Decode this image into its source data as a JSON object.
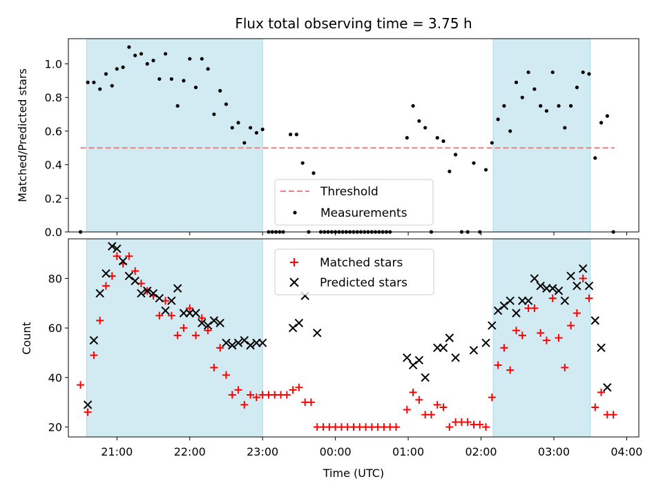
{
  "chart_data": [
    {
      "type": "scatter",
      "title": "Flux total observing time = 3.75 h",
      "xlabel": "",
      "ylabel": "Matched/Predicted stars",
      "xlim": [
        "20:20",
        "04:10"
      ],
      "ylim": [
        0,
        1.15
      ],
      "yticks": [
        "0.0",
        "0.2",
        "0.4",
        "0.6",
        "0.8",
        "1.0"
      ],
      "grid": false,
      "legend_position": "lower-center",
      "colors": {
        "threshold": "#f08080",
        "measurements": "#000000",
        "band": "#add8e6"
      },
      "shaded_spans": [
        [
          "20:35",
          "23:00"
        ],
        [
          "02:10",
          "03:30"
        ]
      ],
      "threshold": {
        "name": "Threshold",
        "value": 0.5,
        "x_range": [
          "20:30",
          "03:50"
        ]
      },
      "series": [
        {
          "name": "Measurements",
          "points": [
            [
              "20:30",
              0.0
            ],
            [
              "20:36",
              0.89
            ],
            [
              "20:41",
              0.89
            ],
            [
              "20:46",
              0.85
            ],
            [
              "20:51",
              0.94
            ],
            [
              "20:56",
              0.87
            ],
            [
              "21:00",
              0.97
            ],
            [
              "21:05",
              0.98
            ],
            [
              "21:10",
              1.1
            ],
            [
              "21:15",
              1.05
            ],
            [
              "21:20",
              1.06
            ],
            [
              "21:25",
              1.0
            ],
            [
              "21:30",
              1.02
            ],
            [
              "21:35",
              0.91
            ],
            [
              "21:40",
              1.06
            ],
            [
              "21:45",
              0.91
            ],
            [
              "21:50",
              0.75
            ],
            [
              "21:55",
              0.9
            ],
            [
              "22:00",
              1.03
            ],
            [
              "22:05",
              0.86
            ],
            [
              "22:10",
              1.03
            ],
            [
              "22:15",
              0.97
            ],
            [
              "22:20",
              0.7
            ],
            [
              "22:25",
              0.84
            ],
            [
              "22:30",
              0.76
            ],
            [
              "22:35",
              0.62
            ],
            [
              "22:40",
              0.65
            ],
            [
              "22:45",
              0.53
            ],
            [
              "22:50",
              0.62
            ],
            [
              "22:55",
              0.59
            ],
            [
              "23:00",
              0.61
            ],
            [
              "23:05",
              0.0
            ],
            [
              "23:08",
              0.0
            ],
            [
              "23:11",
              0.0
            ],
            [
              "23:14",
              0.0
            ],
            [
              "23:17",
              0.0
            ],
            [
              "23:23",
              0.58
            ],
            [
              "23:28",
              0.58
            ],
            [
              "23:33",
              0.41
            ],
            [
              "23:38",
              0.0
            ],
            [
              "23:42",
              0.35
            ],
            [
              "23:48",
              0.0
            ],
            [
              "23:51",
              0.0
            ],
            [
              "23:54",
              0.0
            ],
            [
              "23:57",
              0.0
            ],
            [
              "00:00",
              0.0
            ],
            [
              "00:03",
              0.0
            ],
            [
              "00:06",
              0.0
            ],
            [
              "00:09",
              0.0
            ],
            [
              "00:12",
              0.0
            ],
            [
              "00:15",
              0.0
            ],
            [
              "00:18",
              0.0
            ],
            [
              "00:21",
              0.0
            ],
            [
              "00:24",
              0.0
            ],
            [
              "00:27",
              0.0
            ],
            [
              "00:30",
              0.0
            ],
            [
              "00:33",
              0.0
            ],
            [
              "00:36",
              0.0
            ],
            [
              "00:39",
              0.0
            ],
            [
              "00:42",
              0.0
            ],
            [
              "00:45",
              0.0
            ],
            [
              "00:59",
              0.56
            ],
            [
              "01:04",
              0.75
            ],
            [
              "01:09",
              0.66
            ],
            [
              "01:14",
              0.62
            ],
            [
              "01:19",
              0.0
            ],
            [
              "01:24",
              0.56
            ],
            [
              "01:29",
              0.54
            ],
            [
              "01:34",
              0.36
            ],
            [
              "01:39",
              0.46
            ],
            [
              "01:44",
              0.0
            ],
            [
              "01:49",
              0.0
            ],
            [
              "01:54",
              0.41
            ],
            [
              "01:59",
              0.0
            ],
            [
              "02:04",
              0.37
            ],
            [
              "02:09",
              0.53
            ],
            [
              "02:14",
              0.67
            ],
            [
              "02:19",
              0.75
            ],
            [
              "02:24",
              0.6
            ],
            [
              "02:29",
              0.89
            ],
            [
              "02:34",
              0.8
            ],
            [
              "02:39",
              0.95
            ],
            [
              "02:44",
              0.85
            ],
            [
              "02:49",
              0.75
            ],
            [
              "02:54",
              0.72
            ],
            [
              "02:59",
              0.95
            ],
            [
              "03:04",
              0.75
            ],
            [
              "03:09",
              0.62
            ],
            [
              "03:14",
              0.75
            ],
            [
              "03:19",
              0.86
            ],
            [
              "03:24",
              0.95
            ],
            [
              "03:29",
              0.94
            ],
            [
              "03:34",
              0.44
            ],
            [
              "03:39",
              0.65
            ],
            [
              "03:44",
              0.69
            ],
            [
              "03:49",
              0.0
            ]
          ]
        }
      ]
    },
    {
      "type": "scatter",
      "title": "",
      "xlabel": "Time (UTC)",
      "ylabel": "Count",
      "xlim": [
        "20:20",
        "04:10"
      ],
      "ylim": [
        16,
        96
      ],
      "xticks": [
        "21:00",
        "22:00",
        "23:00",
        "00:00",
        "01:00",
        "02:00",
        "03:00",
        "04:00"
      ],
      "yticks": [
        "20",
        "40",
        "60",
        "80"
      ],
      "grid": false,
      "legend_position": "upper-center",
      "colors": {
        "matched": "#ff0000",
        "predicted": "#000000",
        "band": "#add8e6"
      },
      "shaded_spans": [
        [
          "20:35",
          "23:00"
        ],
        [
          "02:10",
          "03:30"
        ]
      ],
      "series": [
        {
          "name": "Matched stars",
          "points": [
            [
              "20:30",
              37
            ],
            [
              "20:36",
              26
            ],
            [
              "20:41",
              49
            ],
            [
              "20:46",
              63
            ],
            [
              "20:51",
              77
            ],
            [
              "20:56",
              81
            ],
            [
              "21:00",
              89
            ],
            [
              "21:05",
              86
            ],
            [
              "21:10",
              89
            ],
            [
              "21:15",
              83
            ],
            [
              "21:20",
              78
            ],
            [
              "21:25",
              75
            ],
            [
              "21:30",
              73
            ],
            [
              "21:35",
              65
            ],
            [
              "21:40",
              71
            ],
            [
              "21:45",
              65
            ],
            [
              "21:50",
              57
            ],
            [
              "21:55",
              60
            ],
            [
              "22:00",
              68
            ],
            [
              "22:05",
              57
            ],
            [
              "22:10",
              64
            ],
            [
              "22:15",
              59
            ],
            [
              "22:20",
              44
            ],
            [
              "22:25",
              52
            ],
            [
              "22:30",
              41
            ],
            [
              "22:35",
              33
            ],
            [
              "22:40",
              35
            ],
            [
              "22:45",
              29
            ],
            [
              "22:50",
              33
            ],
            [
              "22:55",
              32
            ],
            [
              "23:00",
              33
            ],
            [
              "23:05",
              33
            ],
            [
              "23:10",
              33
            ],
            [
              "23:15",
              33
            ],
            [
              "23:20",
              33
            ],
            [
              "23:25",
              35
            ],
            [
              "23:30",
              36
            ],
            [
              "23:35",
              30
            ],
            [
              "23:40",
              30
            ],
            [
              "23:45",
              20
            ],
            [
              "23:50",
              20
            ],
            [
              "23:55",
              20
            ],
            [
              "00:00",
              20
            ],
            [
              "00:05",
              20
            ],
            [
              "00:10",
              20
            ],
            [
              "00:15",
              20
            ],
            [
              "00:20",
              20
            ],
            [
              "00:25",
              20
            ],
            [
              "00:30",
              20
            ],
            [
              "00:35",
              20
            ],
            [
              "00:40",
              20
            ],
            [
              "00:45",
              20
            ],
            [
              "00:50",
              20
            ],
            [
              "00:59",
              27
            ],
            [
              "01:04",
              34
            ],
            [
              "01:09",
              31
            ],
            [
              "01:14",
              25
            ],
            [
              "01:19",
              25
            ],
            [
              "01:24",
              29
            ],
            [
              "01:29",
              28
            ],
            [
              "01:34",
              20
            ],
            [
              "01:39",
              22
            ],
            [
              "01:44",
              22
            ],
            [
              "01:49",
              22
            ],
            [
              "01:54",
              21
            ],
            [
              "01:59",
              21
            ],
            [
              "02:04",
              20
            ],
            [
              "02:09",
              32
            ],
            [
              "02:14",
              45
            ],
            [
              "02:19",
              52
            ],
            [
              "02:24",
              43
            ],
            [
              "02:29",
              59
            ],
            [
              "02:34",
              57
            ],
            [
              "02:39",
              68
            ],
            [
              "02:44",
              68
            ],
            [
              "02:49",
              58
            ],
            [
              "02:54",
              55
            ],
            [
              "02:59",
              72
            ],
            [
              "03:04",
              56
            ],
            [
              "03:09",
              44
            ],
            [
              "03:14",
              61
            ],
            [
              "03:19",
              66
            ],
            [
              "03:24",
              80
            ],
            [
              "03:29",
              72
            ],
            [
              "03:34",
              28
            ],
            [
              "03:39",
              34
            ],
            [
              "03:44",
              25
            ],
            [
              "03:49",
              25
            ]
          ]
        },
        {
          "name": "Predicted stars",
          "points": [
            [
              "20:36",
              29
            ],
            [
              "20:41",
              55
            ],
            [
              "20:46",
              74
            ],
            [
              "20:51",
              82
            ],
            [
              "20:56",
              93
            ],
            [
              "21:00",
              92
            ],
            [
              "21:05",
              87
            ],
            [
              "21:10",
              81
            ],
            [
              "21:15",
              79
            ],
            [
              "21:20",
              74
            ],
            [
              "21:25",
              75
            ],
            [
              "21:30",
              74
            ],
            [
              "21:35",
              72
            ],
            [
              "21:40",
              67
            ],
            [
              "21:45",
              71
            ],
            [
              "21:50",
              76
            ],
            [
              "21:55",
              66
            ],
            [
              "22:00",
              66
            ],
            [
              "22:05",
              66
            ],
            [
              "22:10",
              62
            ],
            [
              "22:15",
              61
            ],
            [
              "22:20",
              63
            ],
            [
              "22:25",
              62
            ],
            [
              "22:30",
              54
            ],
            [
              "22:35",
              53
            ],
            [
              "22:40",
              54
            ],
            [
              "22:45",
              55
            ],
            [
              "22:50",
              53
            ],
            [
              "22:55",
              54
            ],
            [
              "23:00",
              54
            ],
            [
              "23:25",
              60
            ],
            [
              "23:30",
              62
            ],
            [
              "23:35",
              73
            ],
            [
              "23:45",
              58
            ],
            [
              "00:59",
              48
            ],
            [
              "01:04",
              45
            ],
            [
              "01:09",
              47
            ],
            [
              "01:14",
              40
            ],
            [
              "01:24",
              52
            ],
            [
              "01:29",
              52
            ],
            [
              "01:34",
              56
            ],
            [
              "01:39",
              48
            ],
            [
              "01:54",
              51
            ],
            [
              "02:04",
              54
            ],
            [
              "02:09",
              61
            ],
            [
              "02:14",
              67
            ],
            [
              "02:19",
              69
            ],
            [
              "02:24",
              71
            ],
            [
              "02:29",
              66
            ],
            [
              "02:34",
              71
            ],
            [
              "02:39",
              71
            ],
            [
              "02:44",
              80
            ],
            [
              "02:49",
              77
            ],
            [
              "02:54",
              76
            ],
            [
              "02:59",
              76
            ],
            [
              "03:04",
              75
            ],
            [
              "03:09",
              71
            ],
            [
              "03:14",
              81
            ],
            [
              "03:19",
              77
            ],
            [
              "03:24",
              84
            ],
            [
              "03:29",
              77
            ],
            [
              "03:34",
              63
            ],
            [
              "03:39",
              52
            ],
            [
              "03:44",
              36
            ]
          ]
        }
      ]
    }
  ]
}
